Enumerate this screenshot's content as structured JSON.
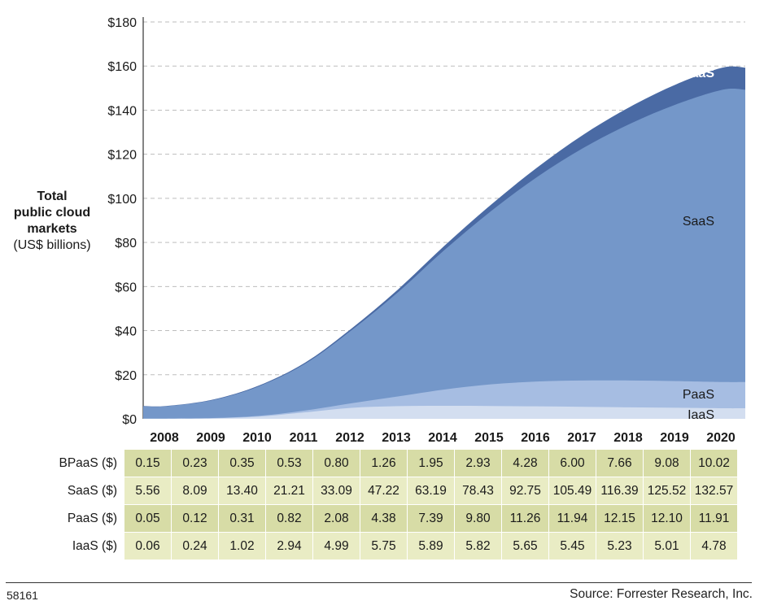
{
  "chart_data": {
    "type": "area",
    "stacked": true,
    "title": "",
    "ylabel_lines": [
      "Total",
      "public cloud",
      "markets"
    ],
    "ylabel_unit": "(US$ billions)",
    "x": [
      "2008",
      "2009",
      "2010",
      "2011",
      "2012",
      "2013",
      "2014",
      "2015",
      "2016",
      "2017",
      "2018",
      "2019",
      "2020"
    ],
    "ylim": [
      0,
      180
    ],
    "yticks": [
      0,
      20,
      40,
      60,
      80,
      100,
      120,
      140,
      160,
      180
    ],
    "ytick_labels": [
      "$0",
      "$20",
      "$40",
      "$60",
      "$80",
      "$100",
      "$120",
      "$140",
      "$160",
      "$180"
    ],
    "grid": true,
    "series": [
      {
        "name": "IaaS",
        "label": "IaaS ($)",
        "color": "#d3def0",
        "values": [
          0.06,
          0.24,
          1.02,
          2.94,
          4.99,
          5.75,
          5.89,
          5.82,
          5.65,
          5.45,
          5.23,
          5.01,
          4.78
        ]
      },
      {
        "name": "PaaS",
        "label": "PaaS ($)",
        "color": "#a6bde2",
        "values": [
          0.05,
          0.12,
          0.31,
          0.82,
          2.08,
          4.38,
          7.39,
          9.8,
          11.26,
          11.94,
          12.15,
          12.1,
          11.91
        ]
      },
      {
        "name": "SaaS",
        "label": "SaaS ($)",
        "color": "#7497c9",
        "values": [
          5.56,
          8.09,
          13.4,
          21.21,
          33.09,
          47.22,
          63.19,
          78.43,
          92.75,
          105.49,
          116.39,
          125.52,
          132.57
        ]
      },
      {
        "name": "BPaaS",
        "label": "BPaaS ($)",
        "color": "#4a6aa4",
        "values": [
          0.15,
          0.23,
          0.35,
          0.53,
          0.8,
          1.26,
          1.95,
          2.93,
          4.28,
          6.0,
          7.66,
          9.08,
          10.02
        ]
      }
    ],
    "table": {
      "rows": [
        {
          "label": "BPaaS ($)",
          "cells": [
            "0.15",
            "0.23",
            "0.35",
            "0.53",
            "0.80",
            "1.26",
            "1.95",
            "2.93",
            "4.28",
            "6.00",
            "7.66",
            "9.08",
            "10.02"
          ]
        },
        {
          "label": "SaaS ($)",
          "cells": [
            "5.56",
            "8.09",
            "13.40",
            "21.21",
            "33.09",
            "47.22",
            "63.19",
            "78.43",
            "92.75",
            "105.49",
            "116.39",
            "125.52",
            "132.57"
          ]
        },
        {
          "label": "PaaS ($)",
          "cells": [
            "0.05",
            "0.12",
            "0.31",
            "0.82",
            "2.08",
            "4.38",
            "7.39",
            "9.80",
            "11.26",
            "11.94",
            "12.15",
            "12.10",
            "11.91"
          ]
        },
        {
          "label": "IaaS ($)",
          "cells": [
            "0.06",
            "0.24",
            "1.02",
            "2.94",
            "4.99",
            "5.75",
            "5.89",
            "5.82",
            "5.65",
            "5.45",
            "5.23",
            "5.01",
            "4.78"
          ]
        }
      ]
    }
  },
  "footer": {
    "figure_id": "58161",
    "source": "Source: Forrester Research, Inc."
  }
}
